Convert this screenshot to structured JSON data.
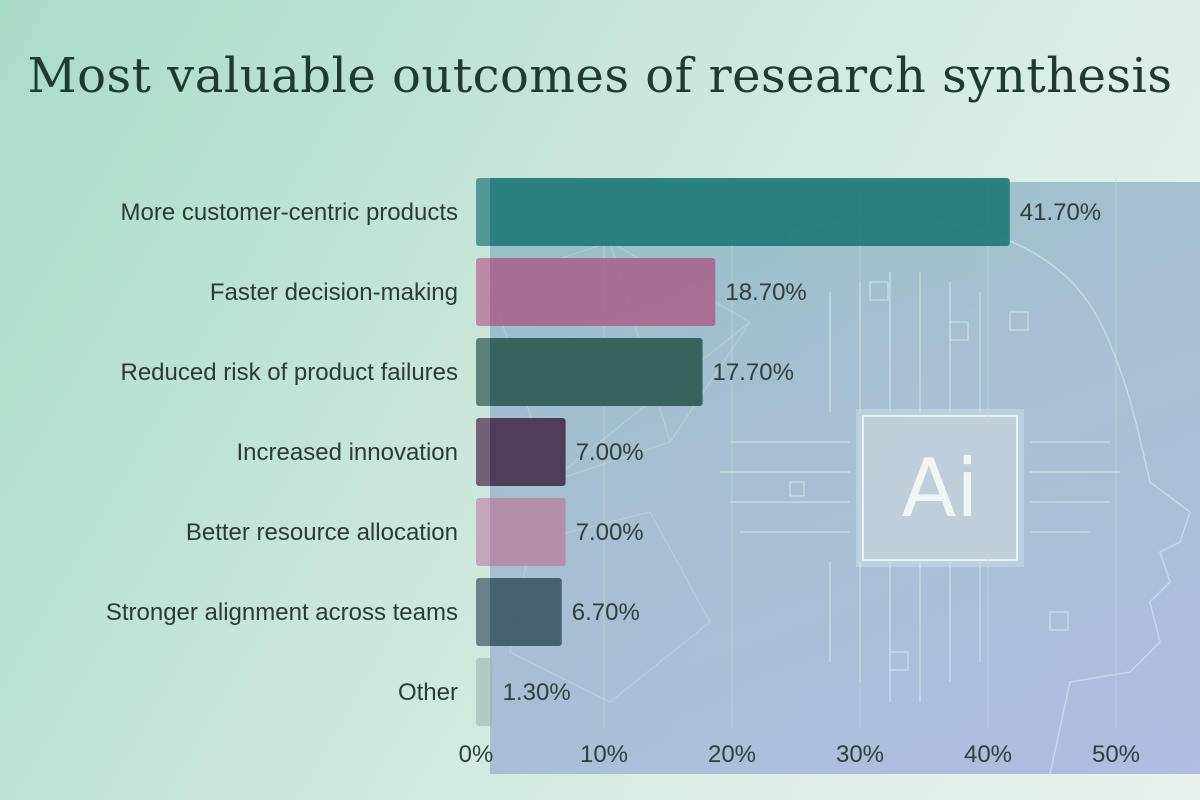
{
  "chart_data": {
    "type": "bar",
    "orientation": "horizontal",
    "title": "Most valuable outcomes of research synthesis",
    "categories": [
      "More customer-centric products",
      "Faster decision-making",
      "Reduced risk of product failures",
      "Increased innovation",
      "Better resource allocation",
      "Stronger alignment across teams",
      "Other"
    ],
    "values": [
      41.7,
      18.7,
      17.7,
      7.0,
      7.0,
      6.7,
      1.3
    ],
    "value_labels": [
      "41.70%",
      "18.70%",
      "17.70%",
      "7.00%",
      "7.00%",
      "6.70%",
      "1.30%"
    ],
    "colors": [
      "#1f7a78",
      "#a8678f",
      "#2f5a55",
      "#4a3050",
      "#b48ba8",
      "#3e5a68",
      "#9dbab4"
    ],
    "xlim": [
      0,
      55
    ],
    "xticks": [
      0,
      10,
      20,
      30,
      40,
      50
    ],
    "xtick_labels": [
      "0%",
      "10%",
      "20%",
      "30%",
      "40%",
      "50%"
    ],
    "xlabel": "",
    "ylabel": "",
    "grid": true
  },
  "background": {
    "badge_text": "Ai"
  }
}
